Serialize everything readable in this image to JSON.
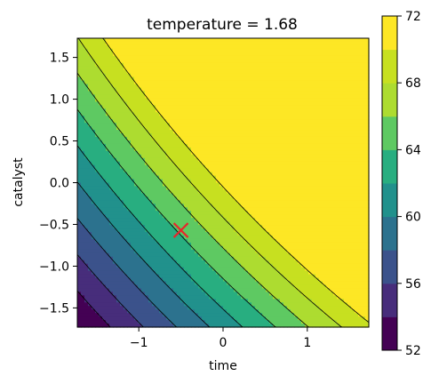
{
  "chart_data": {
    "type": "contour",
    "title": "temperature = 1.68",
    "xlabel": "time",
    "ylabel": "catalyst",
    "xlim": [
      -1.73,
      1.73
    ],
    "ylim": [
      -1.73,
      1.73
    ],
    "x_ticks": [
      -1,
      0,
      1
    ],
    "x_tick_labels": [
      "−1",
      "0",
      "1"
    ],
    "y_ticks": [
      -1.5,
      -1.0,
      -0.5,
      0.0,
      0.5,
      1.0,
      1.5
    ],
    "y_tick_labels": [
      "−1.5",
      "−1.0",
      "−0.5",
      "0.0",
      "0.5",
      "1.0",
      "1.5"
    ],
    "levels": [
      52,
      54,
      56,
      58,
      60,
      62,
      64,
      66,
      68,
      70,
      72
    ],
    "level_colors": [
      "#440154",
      "#472d7b",
      "#3b528b",
      "#2c728e",
      "#21918c",
      "#28ae80",
      "#5ec962",
      "#addc30",
      "#c7e020",
      "#fde725"
    ],
    "colorbar": {
      "ticks": [
        52,
        56,
        60,
        64,
        68,
        72
      ],
      "tick_labels": [
        "52",
        "56",
        "60",
        "64",
        "68",
        "72"
      ]
    },
    "marker": {
      "x": -0.5,
      "y": -0.57,
      "symbol": "x",
      "color": "#e8252b"
    },
    "grid": false,
    "legend": "none"
  }
}
